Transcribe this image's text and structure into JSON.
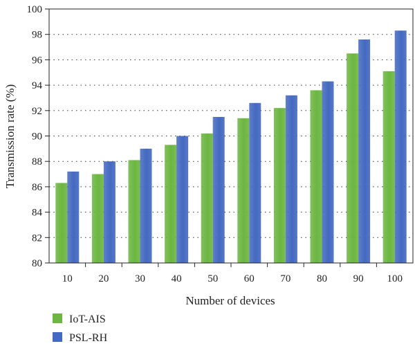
{
  "chart_data": {
    "type": "bar",
    "title": "",
    "xlabel": "Number of devices",
    "ylabel": "Transmission rate (%)",
    "categories": [
      "10",
      "20",
      "30",
      "40",
      "50",
      "60",
      "70",
      "80",
      "90",
      "100"
    ],
    "series": [
      {
        "name": "IoT-AIS",
        "color": "#6cb641",
        "values": [
          86.3,
          87.0,
          88.1,
          89.3,
          90.2,
          91.4,
          92.2,
          93.6,
          96.5,
          95.1
        ]
      },
      {
        "name": "PSL-RH",
        "color": "#4469c0",
        "values": [
          87.2,
          88.0,
          89.0,
          90.0,
          91.5,
          92.6,
          93.2,
          94.3,
          97.6,
          98.3
        ]
      }
    ],
    "ylim": [
      80,
      100
    ],
    "yticks": [
      80,
      82,
      84,
      86,
      88,
      90,
      92,
      94,
      96,
      98,
      100
    ],
    "grid": "dotted-horizontal",
    "legend": "bottom-left"
  }
}
